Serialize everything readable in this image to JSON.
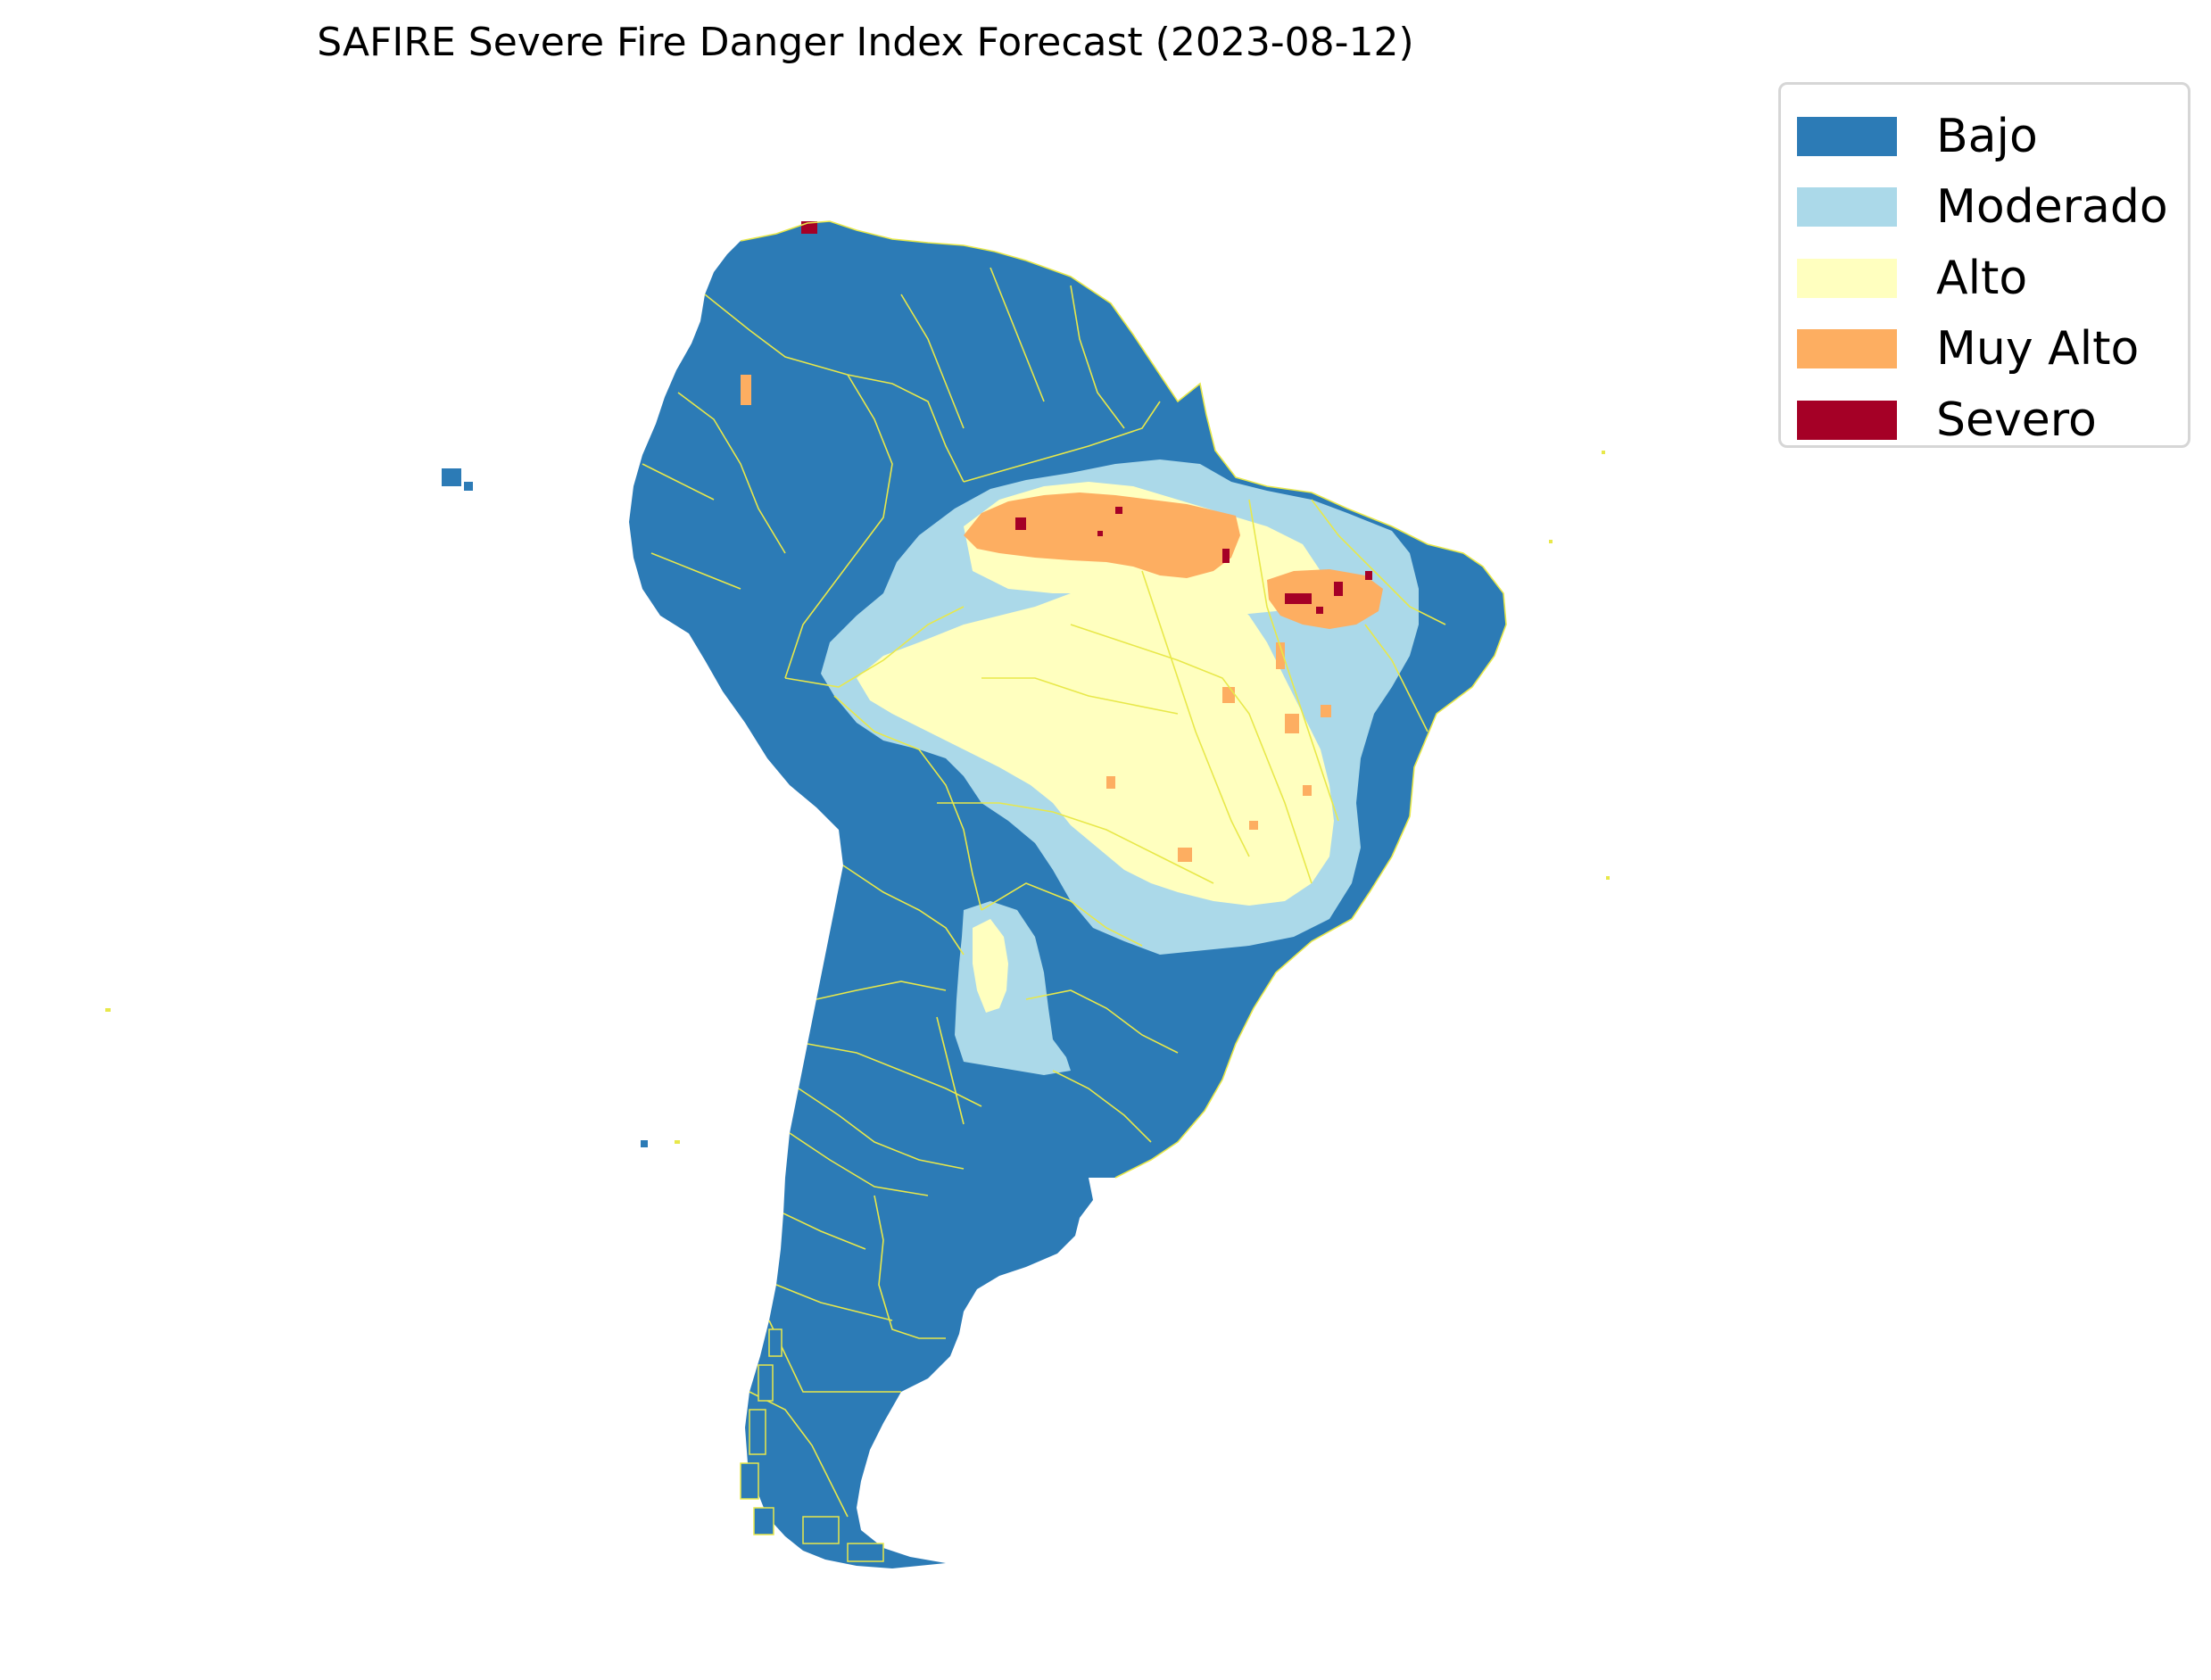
{
  "title": "SAFIRE Severe Fire Danger Index Forecast (2023-08-12)",
  "legend": {
    "items": [
      {
        "label": "Bajo",
        "color": "#2c7bb6"
      },
      {
        "label": "Moderado",
        "color": "#abd9e9"
      },
      {
        "label": "Alto",
        "color": "#ffffbf"
      },
      {
        "label": "Muy Alto",
        "color": "#fdae61"
      },
      {
        "label": "Severo",
        "color": "#a50026"
      }
    ]
  },
  "map": {
    "region": "South America",
    "border_color": "#e8e84a"
  }
}
